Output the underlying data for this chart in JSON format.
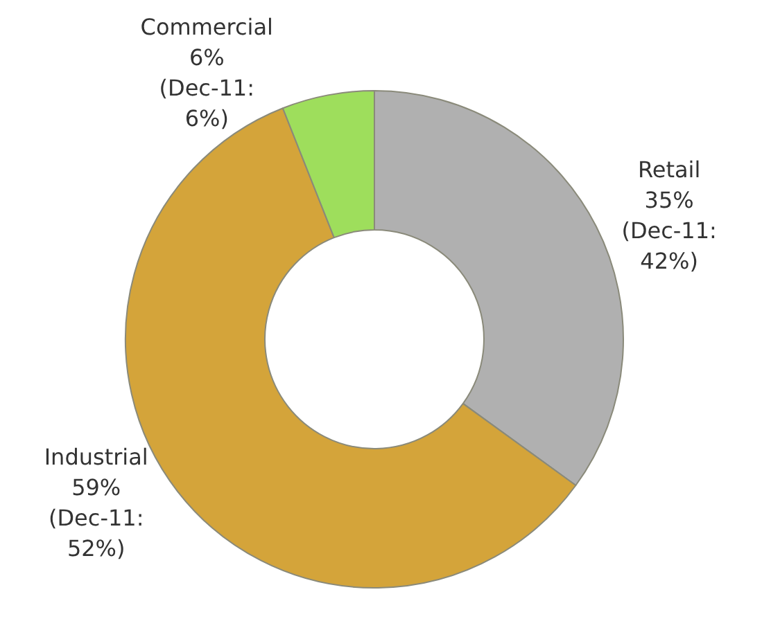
{
  "chart_data": {
    "type": "donut",
    "categories": [
      "Retail",
      "Industrial",
      "Commercial"
    ],
    "values": [
      35,
      59,
      6
    ],
    "colors": [
      "#b0b0b0",
      "#d4a43a",
      "#9ede5c"
    ],
    "value_labels": [
      "35%",
      "59%",
      "6%"
    ],
    "annotations": [
      "(Dec-11: 42%)",
      "(Dec-11: 52%)",
      "(Dec-11: 6%)"
    ],
    "legend": false
  }
}
